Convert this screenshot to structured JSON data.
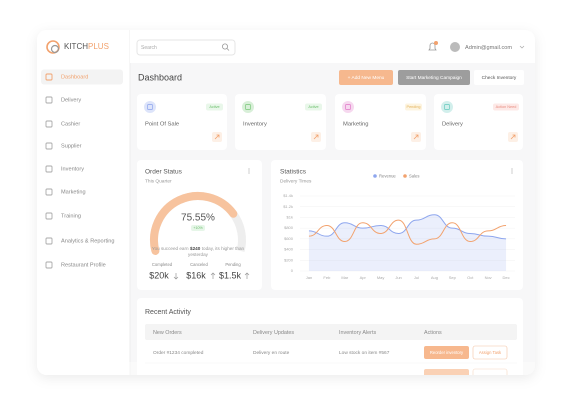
{
  "sidebar": {
    "logo": {
      "primary": "KITCH",
      "accent": "PLUS"
    },
    "nav": [
      "Dashboard",
      "Delivery",
      "Cashier",
      "Supplier",
      "Inventory",
      "Marketing",
      "Training",
      "Analytics & Reporting",
      "Restaurant Profile"
    ]
  },
  "topbar": {
    "search_placeholder": "Search",
    "user": "Admin@gmail.com"
  },
  "header": {
    "title": "Dashboard",
    "buttons": [
      "+ Add New Menu",
      "Start Marketing Campaign",
      "Check Inventory"
    ]
  },
  "modules": [
    {
      "title": "Point Of Sale",
      "status": "Active"
    },
    {
      "title": "Inventory",
      "status": "Active"
    },
    {
      "title": "Marketing",
      "status": "Pending"
    },
    {
      "title": "Delivery",
      "status": "Action Need"
    }
  ],
  "order_status": {
    "title": "Order Status",
    "subtitle": "This Quarter",
    "gauge": {
      "value": 75.55,
      "label": "75.55%"
    },
    "change": "+10%",
    "message": {
      "before": "You succeed earn",
      "amount": "$240",
      "after": "today, its higher than",
      "line2": "yesterday"
    },
    "stats": [
      {
        "label": "Completed",
        "value": "$20k"
      },
      {
        "label": "Canceled",
        "value": "$16k"
      },
      {
        "label": "Pending",
        "value": "$1.5k"
      }
    ]
  },
  "statistics": {
    "type": "line",
    "title": "Statistics",
    "subtitle": "Delivery Times",
    "categories": [
      "Jan",
      "Feb",
      "Mar",
      "Apr",
      "May",
      "Jun",
      "Jul",
      "Aug",
      "Sep",
      "Oct",
      "Nov",
      "Dec"
    ],
    "series": [
      {
        "name": "Revenue",
        "color": "#8ea6ee",
        "values": [
          750,
          650,
          900,
          800,
          850,
          700,
          950,
          1050,
          800,
          700,
          650,
          600
        ]
      },
      {
        "name": "Sales",
        "color": "#f2a26e",
        "values": [
          650,
          850,
          550,
          900,
          700,
          950,
          500,
          600,
          900,
          550,
          750,
          850
        ]
      }
    ],
    "ylim": [
      0,
      1400
    ],
    "yticks": [
      {
        "value": 0,
        "label": "0"
      },
      {
        "value": 200,
        "label": "$200"
      },
      {
        "value": 400,
        "label": "$400"
      },
      {
        "value": 600,
        "label": "$600"
      },
      {
        "value": 800,
        "label": "$800"
      },
      {
        "value": 1000,
        "label": "$1k"
      },
      {
        "value": 1200,
        "label": "$1.2k"
      },
      {
        "value": 1400,
        "label": "$1.4k"
      }
    ]
  },
  "recent_activity": {
    "title": "Recent Activity",
    "columns": [
      "New Orders",
      "Delivery Updates",
      "Inventory Alerts",
      "Actions"
    ],
    "rows": [
      [
        "Order #1234 completed",
        "Delivery en route",
        "Low stock on item #567"
      ]
    ],
    "actions": [
      "Reorder inventory",
      "Assign Task"
    ]
  }
}
